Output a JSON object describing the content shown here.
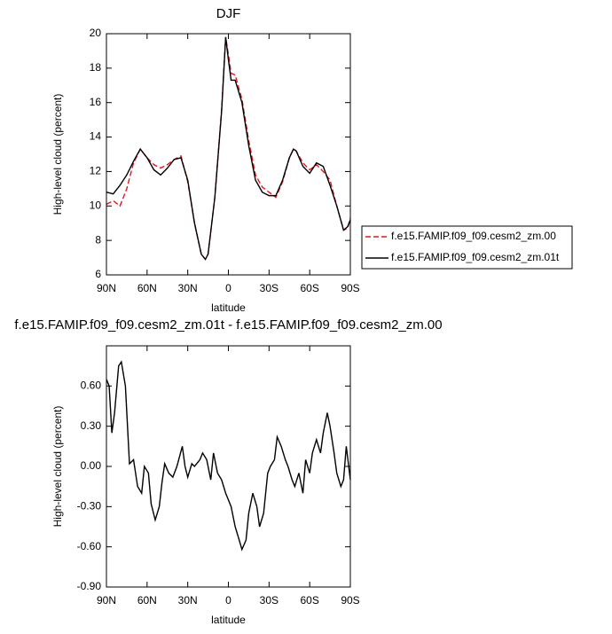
{
  "chart_data": [
    {
      "type": "line",
      "title": "DJF",
      "xlabel": "latitude",
      "ylabel": "High-level cloud (percent)",
      "x": [
        90,
        85,
        80,
        75,
        70,
        65,
        60,
        55,
        50,
        45,
        40,
        35,
        30,
        25,
        20,
        17,
        15,
        10,
        5,
        2,
        0,
        -2,
        -5,
        -10,
        -15,
        -20,
        -25,
        -30,
        -35,
        -40,
        -45,
        -48,
        -50,
        -55,
        -60,
        -65,
        -70,
        -75,
        -80,
        -85,
        -88,
        -90
      ],
      "series": [
        {
          "name": "f.e15.FAMIP.f09_f09.cesm2_zm.00",
          "color": "#e8141c",
          "dash": true,
          "values": [
            10.1,
            10.3,
            10.0,
            11.0,
            12.5,
            13.3,
            12.8,
            12.4,
            12.2,
            12.4,
            12.7,
            12.9,
            11.4,
            9.0,
            7.2,
            6.9,
            7.2,
            10.5,
            15.6,
            19.8,
            18.8,
            17.7,
            17.6,
            16.2,
            13.8,
            11.8,
            11.1,
            10.8,
            10.5,
            11.4,
            12.8,
            13.3,
            13.2,
            12.5,
            12.1,
            12.4,
            12.0,
            11.5,
            10.0,
            8.6,
            8.7,
            9.3
          ]
        },
        {
          "name": "f.e15.FAMIP.f09_f09.cesm2_zm.01t",
          "color": "#000000",
          "dash": false,
          "values": [
            10.8,
            10.7,
            11.2,
            11.8,
            12.6,
            13.3,
            12.8,
            12.1,
            11.8,
            12.2,
            12.7,
            12.8,
            11.5,
            9.0,
            7.2,
            6.9,
            7.2,
            10.5,
            15.5,
            19.8,
            18.5,
            17.3,
            17.3,
            16.0,
            13.5,
            11.5,
            10.8,
            10.6,
            10.6,
            11.5,
            12.8,
            13.3,
            13.2,
            12.3,
            11.9,
            12.5,
            12.3,
            11.2,
            10.0,
            8.6,
            8.8,
            9.2
          ]
        }
      ],
      "xlim": [
        90,
        -90
      ],
      "xticks": [
        {
          "value": 90,
          "label": "90N"
        },
        {
          "value": 60,
          "label": "60N"
        },
        {
          "value": 30,
          "label": "30N"
        },
        0,
        {
          "value": -30,
          "label": "30S"
        },
        {
          "value": -60,
          "label": "60S"
        },
        {
          "value": -90,
          "label": "90S"
        }
      ],
      "ylim": [
        6,
        20
      ],
      "yticks": [
        6,
        8,
        10,
        12,
        14,
        16,
        18,
        20
      ],
      "legend": "right"
    },
    {
      "type": "line",
      "title": "f.e15.FAMIP.f09_f09.cesm2_zm.01t - f.e15.FAMIP.f09_f09.cesm2_zm.00",
      "xlabel": "latitude",
      "ylabel": "High-level cloud (percent)",
      "x": [
        90,
        88,
        86,
        84,
        81,
        79,
        76,
        73,
        70,
        67,
        64,
        62,
        59,
        57,
        54,
        51,
        49,
        47,
        44,
        41,
        38,
        34,
        32,
        30,
        27,
        25,
        21,
        19,
        16,
        13,
        11,
        8,
        5,
        2,
        -2,
        -5,
        -8,
        -10,
        -13,
        -15,
        -18,
        -21,
        -23,
        -26,
        -29,
        -31,
        -34,
        -36,
        -39,
        -42,
        -44,
        -47,
        -49,
        -52,
        -55,
        -57,
        -60,
        -62,
        -65,
        -68,
        -70,
        -73,
        -75,
        -78,
        -80,
        -83,
        -85,
        -87,
        -90
      ],
      "values": [
        0.65,
        0.6,
        0.25,
        0.4,
        0.75,
        0.78,
        0.6,
        0.02,
        0.05,
        -0.15,
        -0.2,
        0.0,
        -0.05,
        -0.28,
        -0.4,
        -0.3,
        -0.12,
        0.02,
        -0.05,
        -0.08,
        0.0,
        0.15,
        0.0,
        -0.08,
        0.02,
        0.0,
        0.05,
        0.1,
        0.05,
        -0.1,
        0.1,
        -0.05,
        -0.1,
        -0.2,
        -0.3,
        -0.45,
        -0.55,
        -0.62,
        -0.55,
        -0.35,
        -0.2,
        -0.3,
        -0.45,
        -0.35,
        -0.05,
        0.0,
        0.05,
        0.22,
        0.15,
        0.05,
        0.0,
        -0.1,
        -0.15,
        -0.05,
        -0.2,
        0.05,
        -0.05,
        0.1,
        0.2,
        0.1,
        0.25,
        0.4,
        0.3,
        0.1,
        -0.05,
        -0.15,
        -0.1,
        0.15,
        -0.1
      ],
      "color": "#000000",
      "xlim": [
        90,
        -90
      ],
      "xticks": [
        {
          "value": 90,
          "label": "90N"
        },
        {
          "value": 60,
          "label": "60N"
        },
        {
          "value": 30,
          "label": "30N"
        },
        0,
        {
          "value": -30,
          "label": "30S"
        },
        {
          "value": -60,
          "label": "60S"
        },
        {
          "value": -90,
          "label": "90S"
        }
      ],
      "ylim": [
        -0.9,
        0.9
      ],
      "yticks": [
        {
          "value": -0.9,
          "label": "-0.90"
        },
        {
          "value": -0.6,
          "label": "-0.60"
        },
        {
          "value": -0.3,
          "label": "-0.30"
        },
        {
          "value": 0,
          "label": "0.00"
        },
        {
          "value": 0.3,
          "label": "0.30"
        },
        {
          "value": 0.6,
          "label": "0.60"
        }
      ]
    }
  ]
}
